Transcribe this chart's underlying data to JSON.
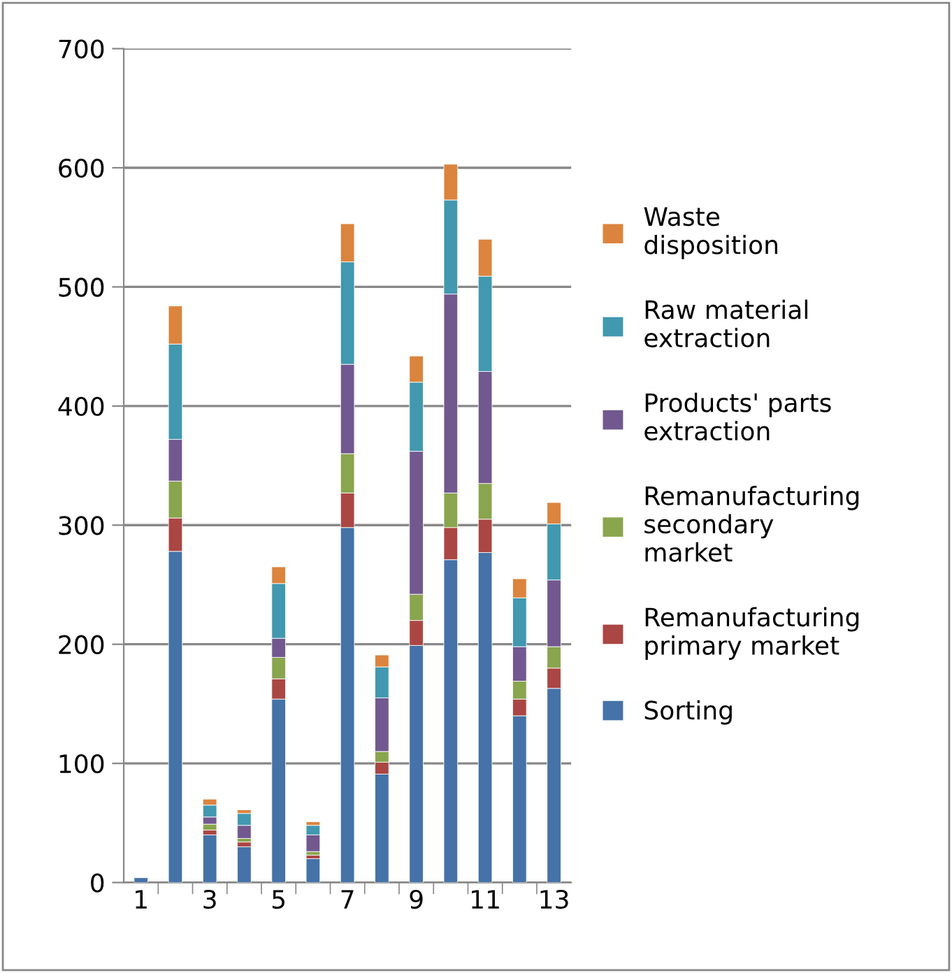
{
  "chart_data": {
    "type": "bar",
    "stacked": true,
    "categories": [
      "1",
      null,
      "3",
      null,
      "5",
      null,
      "7",
      null,
      "9",
      null,
      "11",
      null,
      "13"
    ],
    "series": [
      {
        "name": "Sorting",
        "color": "#4572a7",
        "values": [
          4,
          278,
          40,
          30,
          154,
          20,
          298,
          91,
          199,
          271,
          277,
          140,
          163
        ]
      },
      {
        "name": "Remanufacturing\nprimary market",
        "color": "#aa4643",
        "values": [
          null,
          28,
          4,
          4,
          17,
          3,
          29,
          10,
          21,
          27,
          28,
          14,
          17
        ]
      },
      {
        "name": "Remanufacturing\nsecondary\nmarket",
        "color": "#89a54e",
        "values": [
          null,
          31,
          5,
          3,
          18,
          3,
          33,
          9,
          22,
          29,
          30,
          15,
          18
        ]
      },
      {
        "name": "Products' parts\nextraction",
        "color": "#71588f",
        "values": [
          null,
          35,
          6,
          11,
          16,
          14,
          75,
          45,
          120,
          167,
          94,
          29,
          56
        ]
      },
      {
        "name": "Raw material\nextraction",
        "color": "#4198af",
        "values": [
          null,
          80,
          10,
          10,
          46,
          8,
          86,
          26,
          58,
          79,
          80,
          41,
          47
        ]
      },
      {
        "name": "Waste\ndisposition",
        "color": "#db843d",
        "values": [
          null,
          32,
          5,
          3,
          14,
          3,
          32,
          10,
          22,
          30,
          31,
          16,
          18
        ]
      }
    ],
    "ylim": [
      0,
      700
    ],
    "yticks": [
      0,
      100,
      200,
      300,
      400,
      500,
      600,
      700
    ],
    "grid": "y",
    "legend": "right"
  }
}
